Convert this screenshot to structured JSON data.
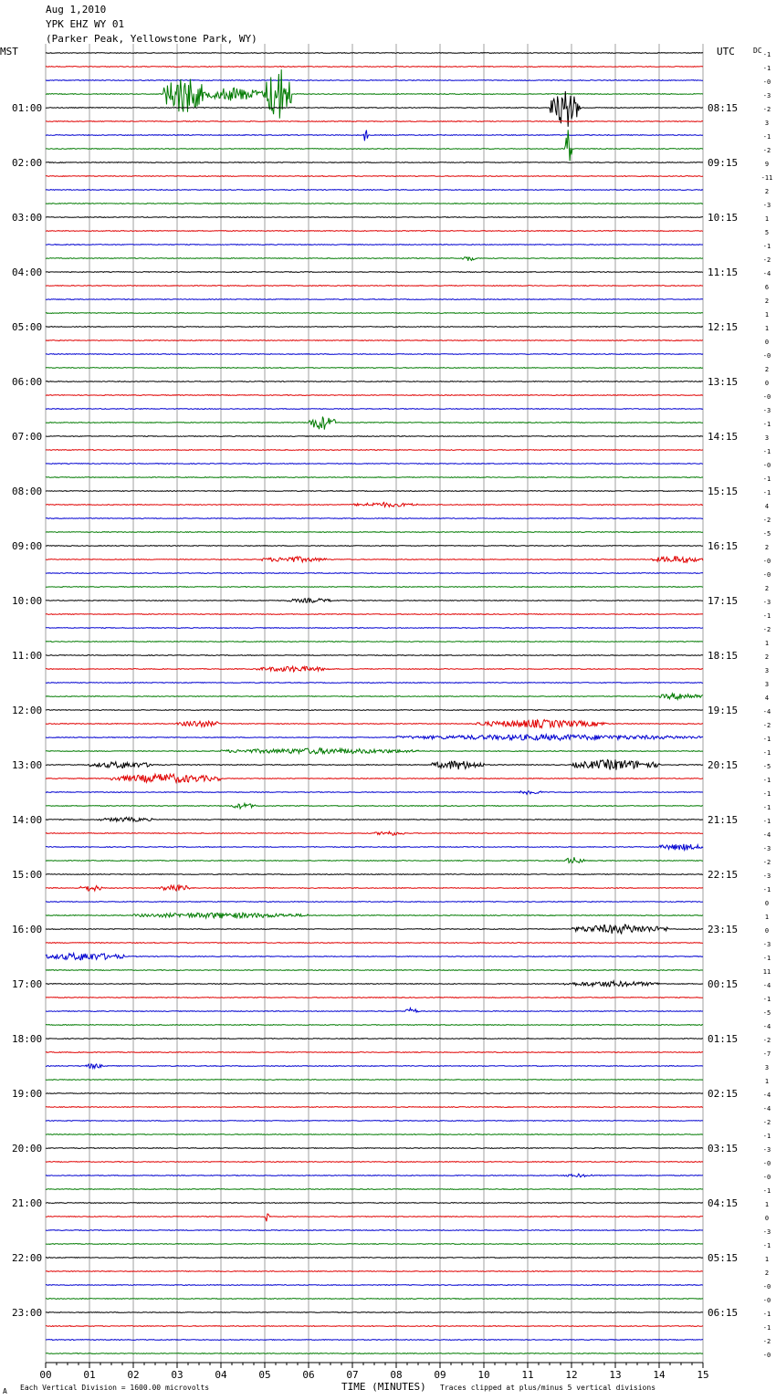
{
  "header": {
    "date": "Aug 1,2010",
    "station": "YPK EHZ WY 01",
    "location": "(Parker Peak, Yellowstone Park, WY)"
  },
  "labels": {
    "left_tz": "MST",
    "right_tz": "UTC",
    "dc": "DC",
    "xlabel": "TIME (MINUTES)",
    "scale_note": "Each Vertical Division = 1600.00 microvolts",
    "clip_note": "Traces clipped at plus/minus 5 vertical divisions",
    "corner_mark": "A"
  },
  "colors": {
    "trace_cycle": [
      "#000000",
      "#e00000",
      "#0000d0",
      "#007a00"
    ],
    "grid": "#a0a0a0"
  },
  "chart_data": {
    "type": "line",
    "title": "YPK EHZ WY 01",
    "x_ticks": [
      "00",
      "01",
      "02",
      "03",
      "04",
      "05",
      "06",
      "07",
      "08",
      "09",
      "10",
      "11",
      "12",
      "13",
      "14",
      "15"
    ],
    "xlim": [
      0,
      15
    ],
    "traces_per_hour": 4,
    "minutes_per_trace": 15,
    "left_hour_labels": [
      "01:00",
      "02:00",
      "03:00",
      "04:00",
      "05:00",
      "06:00",
      "07:00",
      "08:00",
      "09:00",
      "10:00",
      "11:00",
      "12:00",
      "13:00",
      "14:00",
      "15:00",
      "16:00",
      "17:00",
      "18:00",
      "19:00",
      "20:00",
      "21:00",
      "22:00",
      "23:00"
    ],
    "right_hour_labels": [
      "08:15",
      "09:15",
      "10:15",
      "11:15",
      "12:15",
      "13:15",
      "14:15",
      "15:15",
      "16:15",
      "17:15",
      "18:15",
      "19:15",
      "20:15",
      "21:15",
      "22:15",
      "23:15",
      "00:15",
      "01:15",
      "02:15",
      "03:15",
      "04:15",
      "05:15",
      "06:15"
    ],
    "dc_offsets": [
      "-1",
      "-1",
      "-0",
      "-3",
      "-2",
      "3",
      "-1",
      "-2",
      "9",
      "-11",
      "2",
      "-3",
      "1",
      "5",
      "-1",
      "-2",
      "-4",
      "6",
      "2",
      "1",
      "1",
      "0",
      "-0",
      "2",
      "0",
      "-0",
      "-3",
      "-1",
      "3",
      "-1",
      "-0",
      "-1",
      "-1",
      "4",
      "-2",
      "-5",
      "2",
      "-0",
      "-0",
      "2",
      "-3",
      "-1",
      "-2",
      "1",
      "2",
      "3",
      "3",
      "4",
      "-4",
      "-2",
      "-1",
      "-1",
      "-5",
      "-1",
      "-1",
      "-1",
      "-1",
      "-4",
      "-3",
      "-2",
      "-3",
      "-1",
      "0",
      "1",
      "0",
      "-3",
      "-1",
      "11",
      "-4",
      "-1",
      "-5",
      "-4",
      "-2",
      "-7",
      "3",
      "1",
      "-4",
      "-4",
      "-2",
      "-1",
      "-3",
      "-0",
      "-0",
      "-1",
      "1",
      "0",
      "-3",
      "-1",
      "1",
      "2",
      "-0",
      "-0",
      "-1",
      "-1",
      "-2",
      "-0"
    ],
    "events": [
      {
        "trace": 3,
        "start": 2.7,
        "end": 3.6,
        "amp": 3.5
      },
      {
        "trace": 3,
        "start": 3.6,
        "end": 5.0,
        "amp": 1.2
      },
      {
        "trace": 3,
        "start": 5.0,
        "end": 5.6,
        "amp": 5.0
      },
      {
        "trace": 4,
        "start": 11.5,
        "end": 12.2,
        "amp": 3.0
      },
      {
        "trace": 4,
        "start": 11.9,
        "end": 12.0,
        "amp": 5.0
      },
      {
        "trace": 7,
        "start": 11.85,
        "end": 12.0,
        "amp": 5.0
      },
      {
        "trace": 6,
        "start": 7.25,
        "end": 7.35,
        "amp": 1.3
      },
      {
        "trace": 15,
        "start": 9.5,
        "end": 9.8,
        "amp": 0.5
      },
      {
        "trace": 27,
        "start": 6.0,
        "end": 6.6,
        "amp": 1.3
      },
      {
        "trace": 33,
        "start": 7.0,
        "end": 8.5,
        "amp": 0.4
      },
      {
        "trace": 37,
        "start": 4.9,
        "end": 6.4,
        "amp": 0.5
      },
      {
        "trace": 37,
        "start": 13.8,
        "end": 15.0,
        "amp": 0.6
      },
      {
        "trace": 40,
        "start": 5.5,
        "end": 6.6,
        "amp": 0.4
      },
      {
        "trace": 45,
        "start": 4.8,
        "end": 6.5,
        "amp": 0.5
      },
      {
        "trace": 47,
        "start": 14.0,
        "end": 15.0,
        "amp": 0.6
      },
      {
        "trace": 49,
        "start": 3.0,
        "end": 4.0,
        "amp": 0.6
      },
      {
        "trace": 49,
        "start": 9.8,
        "end": 12.8,
        "amp": 0.7
      },
      {
        "trace": 50,
        "start": 8.0,
        "end": 15.0,
        "amp": 0.5
      },
      {
        "trace": 51,
        "start": 4.0,
        "end": 8.5,
        "amp": 0.5
      },
      {
        "trace": 52,
        "start": 1.0,
        "end": 2.5,
        "amp": 0.6
      },
      {
        "trace": 52,
        "start": 8.8,
        "end": 10.0,
        "amp": 0.8
      },
      {
        "trace": 52,
        "start": 12.0,
        "end": 14.0,
        "amp": 0.9
      },
      {
        "trace": 53,
        "start": 1.5,
        "end": 4.0,
        "amp": 0.8
      },
      {
        "trace": 54,
        "start": 10.8,
        "end": 11.3,
        "amp": 0.5
      },
      {
        "trace": 55,
        "start": 4.2,
        "end": 4.8,
        "amp": 0.5
      },
      {
        "trace": 56,
        "start": 1.2,
        "end": 2.5,
        "amp": 0.4
      },
      {
        "trace": 57,
        "start": 7.5,
        "end": 8.2,
        "amp": 0.4
      },
      {
        "trace": 58,
        "start": 14.0,
        "end": 15.0,
        "amp": 0.6
      },
      {
        "trace": 59,
        "start": 11.8,
        "end": 12.3,
        "amp": 0.6
      },
      {
        "trace": 61,
        "start": 0.8,
        "end": 1.3,
        "amp": 0.6
      },
      {
        "trace": 61,
        "start": 2.6,
        "end": 3.3,
        "amp": 0.7
      },
      {
        "trace": 63,
        "start": 2.0,
        "end": 6.0,
        "amp": 0.5
      },
      {
        "trace": 64,
        "start": 12.0,
        "end": 14.2,
        "amp": 0.8
      },
      {
        "trace": 66,
        "start": 0.0,
        "end": 1.8,
        "amp": 0.7
      },
      {
        "trace": 68,
        "start": 11.8,
        "end": 14.0,
        "amp": 0.5
      },
      {
        "trace": 70,
        "start": 8.2,
        "end": 8.5,
        "amp": 0.6
      },
      {
        "trace": 74,
        "start": 0.9,
        "end": 1.3,
        "amp": 0.5
      },
      {
        "trace": 82,
        "start": 11.8,
        "end": 12.5,
        "amp": 0.3
      },
      {
        "trace": 85,
        "start": 5.0,
        "end": 5.1,
        "amp": 1.2
      }
    ]
  }
}
